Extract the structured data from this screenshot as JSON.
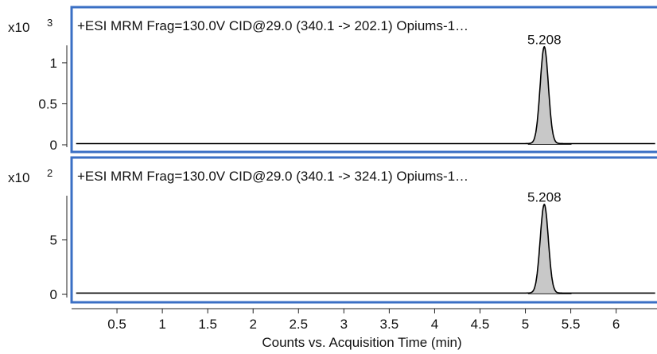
{
  "chart_data": [
    {
      "type": "area",
      "title": "+ESI MRM Frag=130.0V CID@29.0 (340.1 -> 202.1) Opiums-1…",
      "multiplier_label": "x10",
      "multiplier_exp": "3",
      "ylim": [
        0,
        1.3
      ],
      "y_ticks": [
        {
          "value": 0,
          "label": "0"
        },
        {
          "value": 0.5,
          "label": "0.5"
        },
        {
          "value": 1,
          "label": "1"
        }
      ],
      "baseline": 0.015,
      "peak": {
        "rt": 5.208,
        "height": 1.18,
        "width": 0.045,
        "label": "5.208"
      },
      "shaded": true,
      "grid": false
    },
    {
      "type": "area",
      "title": "+ESI MRM Frag=130.0V CID@29.0 (340.1 -> 324.1) Opiums-1…",
      "multiplier_label": "x10",
      "multiplier_exp": "2",
      "ylim": [
        0,
        9.8
      ],
      "y_ticks": [
        {
          "value": 0,
          "label": "0"
        },
        {
          "value": 5,
          "label": "5"
        }
      ],
      "baseline": 0.12,
      "peak": {
        "rt": 5.208,
        "height": 8.15,
        "width": 0.045,
        "label": "5.208"
      },
      "shaded": true,
      "grid": false
    }
  ],
  "x_axis": {
    "xlim": [
      0,
      6.45
    ],
    "ticks": [
      "0.5",
      "1",
      "1.5",
      "2",
      "2.5",
      "3",
      "3.5",
      "4",
      "4.5",
      "5",
      "5.5",
      "6"
    ],
    "label": "Counts vs. Acquisition Time (min)"
  },
  "colors": {
    "panel_border": "#3a6fc4",
    "trace": "#000000",
    "peak_fill": "#c8c8c8"
  }
}
